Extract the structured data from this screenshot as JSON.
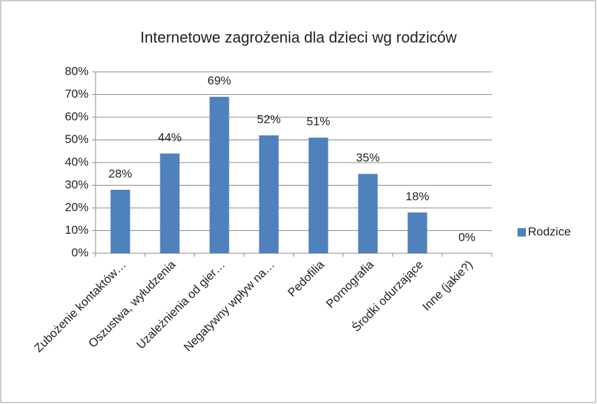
{
  "chart_data": {
    "type": "bar",
    "title": "Internetowe zagrożenia dla dzieci wg rodziców",
    "categories": [
      "Zubożenie kontaktów…",
      "Oszustwa, wyłudzenia",
      "Uzależnienia od gier…",
      "Negatywny wpływ na…",
      "Pedofilia",
      "Pornografia",
      "Środki odurzające",
      "Inne (jakie?)"
    ],
    "series": [
      {
        "name": "Rodzice",
        "color": "#4f81bd",
        "values": [
          28,
          44,
          69,
          52,
          51,
          35,
          18,
          0
        ],
        "value_labels": [
          "28%",
          "44%",
          "69%",
          "52%",
          "51%",
          "35%",
          "18%",
          "0%"
        ]
      }
    ],
    "ylim": [
      0,
      80
    ],
    "yticks": [
      {
        "value": 0,
        "label": "0%"
      },
      {
        "value": 10,
        "label": "10%"
      },
      {
        "value": 20,
        "label": "20%"
      },
      {
        "value": 30,
        "label": "30%"
      },
      {
        "value": 40,
        "label": "40%"
      },
      {
        "value": 50,
        "label": "50%"
      },
      {
        "value": 60,
        "label": "60%"
      },
      {
        "value": 70,
        "label": "70%"
      },
      {
        "value": 80,
        "label": "80%"
      }
    ],
    "grid": true,
    "legend": "right"
  }
}
